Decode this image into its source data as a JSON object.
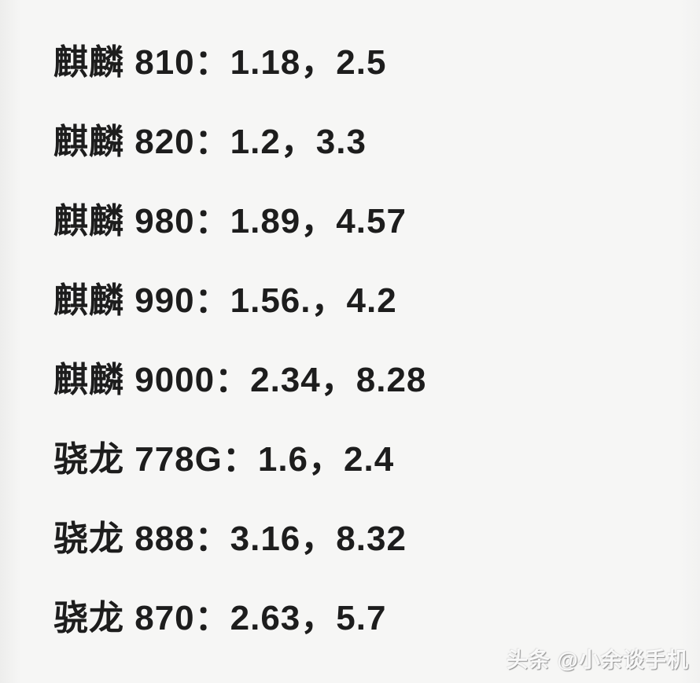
{
  "page": {
    "background_color": "#f6f6f5",
    "text_color": "#1d1d1d"
  },
  "chip_list": {
    "items": [
      {
        "chip": "麒麟 810",
        "values": [
          1.18,
          2.5
        ],
        "text": "麒麟 810：1.18，2.5"
      },
      {
        "chip": "麒麟 820",
        "values": [
          1.2,
          3.3
        ],
        "text": "麒麟 820：1.2，3.3"
      },
      {
        "chip": "麒麟 980",
        "values": [
          1.89,
          4.57
        ],
        "text": "麒麟 980：1.89，4.57"
      },
      {
        "chip": "麒麟 990",
        "values": [
          1.56,
          4.2
        ],
        "text": "麒麟 990：1.56.，4.2"
      },
      {
        "chip": "麒麟 9000",
        "values": [
          2.34,
          8.28
        ],
        "text": "麒麟 9000：2.34，8.28"
      },
      {
        "chip": "骁龙 778G",
        "values": [
          1.6,
          2.4
        ],
        "text": "骁龙 778G：1.6，2.4"
      },
      {
        "chip": "骁龙 888",
        "values": [
          3.16,
          8.32
        ],
        "text": "骁龙 888：3.16，8.32"
      },
      {
        "chip": "骁龙 870",
        "values": [
          2.63,
          5.7
        ],
        "text": "骁龙 870：2.63，5.7"
      }
    ]
  },
  "watermark": {
    "text": "头条 @小余谈手机"
  }
}
